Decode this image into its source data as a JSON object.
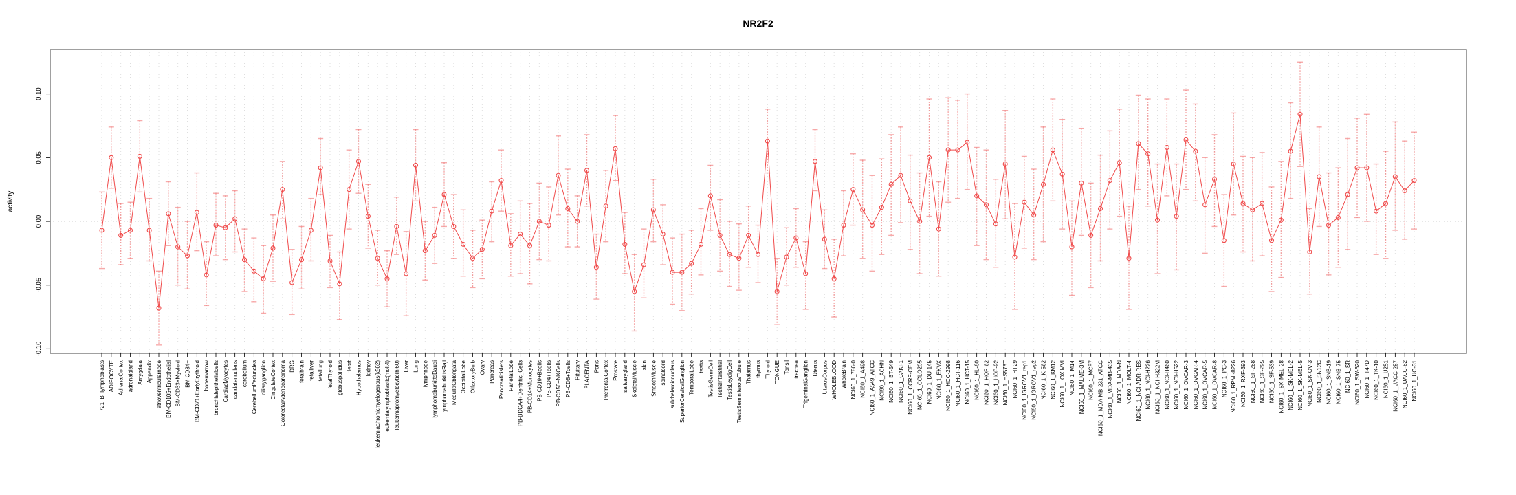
{
  "chart_data": {
    "type": "scatter",
    "title": "NR2F2",
    "ylabel": "activity",
    "xlabel": "",
    "ylim": [
      -0.104,
      0.135
    ],
    "grid": "vertical-dotted-per-category-plus-zero-line",
    "legend": "none",
    "marker": "open-circle-with-error-bars-connected-by-line",
    "ytick_values": [
      -0.1,
      -0.05,
      0.0,
      0.05,
      0.1
    ],
    "ytick_labels": [
      "-0.10",
      "-0.05",
      "0.00",
      "0.05",
      "0.10"
    ],
    "colors": {
      "point": "#f04a4a",
      "line": "#f04a4a",
      "errorbar": "rgba(240,100,100,0.55)",
      "gridline": "#dedede",
      "zero_line": "#d8d8d8",
      "box": "#808080",
      "axis": "#000000"
    },
    "categories": [
      "721_B_lymphoblasts",
      "ADIPOCYTE",
      "AdrenalCortex",
      "adrenalgland",
      "Amygdala",
      "Appendix",
      "atrioventricularnode",
      "BM-CD105+Endothelial",
      "BM-CD33+Myeloid",
      "BM-CD34+",
      "BM-CD71+EarlyErythroid",
      "bonemarrow",
      "bronchialepithelialcells",
      "CardiacMyocytes",
      "caudatenucleus",
      "cerebellum",
      "CerebellumPeduncles",
      "ciliaryganglion",
      "CingulateCortex",
      "ColorectalAdenocarcinoma",
      "DRG",
      "fetalbrain",
      "fetalliver",
      "fetallung",
      "fetalThyroid",
      "globuspallidus",
      "Heart",
      "Hypothalamus",
      "kidney",
      "leukemiachronicmyelogenous(k562)",
      "leukemialymphoblastic(molt4)",
      "leukemiapromyelocytic(hl60)",
      "Liver",
      "Lung",
      "lymphnode",
      "lymphomaburkittsDaudi",
      "lymphomaburkittsRaji",
      "MedullaOblongata",
      "OccipitalLobe",
      "OlfactoryBulb",
      "Ovary",
      "Pancreas",
      "Pancreaticislets",
      "ParietalLobe",
      "PB-BDCA4+Dentritic_Cells",
      "PB-CD14+Monocytes",
      "PB-CD19+Bcells",
      "PB-CD4+Tcells",
      "PB-CD56+NKCells",
      "PB-CD8+Tcells",
      "Pituitary",
      "PLACENTA",
      "Pons",
      "PrefrontalCortex",
      "Prostate",
      "salivarygland",
      "SkeletalMuscle",
      "skin",
      "SmoothMuscle",
      "spinalcord",
      "subthalamicnucleus",
      "SuperiorCervicalGanglion",
      "TemporalLobe",
      "testis",
      "TestisGermCell",
      "TestisInterstitial",
      "TestisLeydigCell",
      "TestisSeminiferousTubule",
      "Thalamus",
      "thymus",
      "Thyroid",
      "TONGUE",
      "Tonsil",
      "trachea",
      "TrigeminalGanglion",
      "Uterus",
      "UterusCorpus",
      "WHOLEBLOOD",
      "WholeBrain",
      "NCI60_1_786-0",
      "NCI60_1_A498",
      "NCI60_1_A549_ATCC",
      "NCI60_1_ACHN",
      "NCI60_1_BT-549",
      "NCI60_1_CAKI-1",
      "NCI60_1_CCRF-CEM",
      "NCI60_1_COLO205",
      "NCI60_1_DU-145",
      "NCI60_1_EKVX",
      "NCI60_1_HCC-2998",
      "NCI60_1_HCT-116",
      "NCI60_1_HCT-15",
      "NCI60_1_HL-60",
      "NCI60_1_HOP-62",
      "NCI60_1_HOP-92",
      "NCI60_1_HS578T",
      "NCI60_1_HT29",
      "NCI60_1_IGROV1_rep1",
      "NCI60_1_IGROV1_rep2",
      "NCI60_1_K-562",
      "NCI60_1_KM12",
      "NCI60_1_LOXIMVI",
      "NCI60_1_M14",
      "NCI60_1_MALME-3M",
      "NCI60_1_MCF7",
      "NCI60_1_MDA-MB-231_ATCC",
      "NCI60_1_MDA-MB-435",
      "NCI60_1_MDA-N",
      "NCI60_1_MOLT-4",
      "NCI60_1_NCI-ADR-RES",
      "NCI60_1_NCI-H226",
      "NCI60_1_NCI-H322M",
      "NCI60_1_NCI-H460",
      "NCI60_1_NCI-H522",
      "NCI60_1_OVCAR-3",
      "NCI60_1_OVCAR-4",
      "NCI60_1_OVCAR-5",
      "NCI60_1_OVCAR-8",
      "NCI60_1_PC-3",
      "NCI60_1_RPMI-8226",
      "NCI60_1_RXF-393",
      "NCI60_1_SF-268",
      "NCI60_1_SF-295",
      "NCI60_1_SF-539",
      "NCI60_1_SK-MEL-28",
      "NCI60_1_SK-MEL-2",
      "NCI60_1_SK-MEL-5",
      "NCI60_1_SK-OV-3",
      "NCI60_1_SN12C",
      "NCI60_1_SNB-19",
      "NCI60_1_SNB-75",
      "NCI60_1_SR",
      "NCI60_1_SW-620",
      "NCI60_1_T47D",
      "NCI60_1_TK-10",
      "NCI60_1_U251",
      "NCI60_1_UACC-257",
      "NCI60_1_UACC-62",
      "NCI60_1_UO-31"
    ],
    "series": [
      {
        "name": "activity",
        "values": [
          -0.007,
          0.05,
          -0.011,
          -0.007,
          0.051,
          -0.007,
          -0.068,
          0.006,
          -0.02,
          -0.027,
          0.007,
          -0.042,
          -0.003,
          -0.005,
          0.002,
          -0.03,
          -0.039,
          -0.045,
          -0.021,
          0.025,
          -0.048,
          -0.03,
          -0.007,
          0.042,
          -0.031,
          -0.049,
          0.025,
          0.047,
          0.004,
          -0.029,
          -0.045,
          -0.004,
          -0.041,
          0.044,
          -0.023,
          -0.011,
          0.021,
          -0.004,
          -0.018,
          -0.029,
          -0.022,
          0.008,
          0.032,
          -0.019,
          -0.01,
          -0.019,
          0.0,
          -0.003,
          0.036,
          0.01,
          0.0,
          0.04,
          -0.036,
          0.012,
          0.057,
          -0.018,
          -0.055,
          -0.034,
          0.009,
          -0.01,
          -0.04,
          -0.04,
          -0.033,
          -0.018,
          0.02,
          -0.011,
          -0.026,
          -0.029,
          -0.011,
          -0.026,
          0.063,
          -0.055,
          -0.028,
          -0.013,
          -0.041,
          0.047,
          -0.014,
          -0.045,
          -0.003,
          0.025,
          0.009,
          -0.003,
          0.011,
          0.029,
          0.036,
          0.016,
          0.0,
          0.05,
          -0.006,
          0.056,
          0.056,
          0.062,
          0.02,
          0.013,
          -0.002,
          0.045,
          -0.028,
          0.015,
          0.005,
          0.029,
          0.056,
          0.037,
          -0.02,
          0.03,
          -0.011,
          0.01,
          0.032,
          0.046,
          -0.029,
          0.061,
          0.053,
          0.001,
          0.058,
          0.004,
          0.064,
          0.055,
          0.013,
          0.033,
          -0.015,
          0.045,
          0.014,
          0.009,
          0.014,
          -0.015,
          0.001,
          0.055,
          0.084,
          -0.024,
          0.035,
          -0.003,
          0.003,
          0.021,
          0.042,
          0.042,
          0.008,
          0.014,
          0.035,
          0.024,
          0.032
        ],
        "lower": [
          -0.037,
          0.026,
          -0.034,
          -0.029,
          0.023,
          -0.031,
          -0.097,
          -0.019,
          -0.05,
          -0.053,
          -0.023,
          -0.066,
          -0.027,
          -0.03,
          -0.024,
          -0.055,
          -0.063,
          -0.072,
          -0.047,
          0.002,
          -0.073,
          -0.053,
          -0.031,
          0.021,
          -0.052,
          -0.077,
          -0.006,
          0.022,
          -0.021,
          -0.05,
          -0.067,
          -0.026,
          -0.074,
          0.016,
          -0.046,
          -0.033,
          -0.004,
          -0.029,
          -0.043,
          -0.052,
          -0.045,
          -0.016,
          0.008,
          -0.043,
          -0.041,
          -0.049,
          -0.03,
          -0.031,
          0.005,
          -0.02,
          -0.02,
          0.012,
          -0.061,
          -0.016,
          0.032,
          -0.041,
          -0.086,
          -0.06,
          -0.016,
          -0.034,
          -0.065,
          -0.07,
          -0.057,
          -0.042,
          -0.007,
          -0.039,
          -0.051,
          -0.054,
          -0.036,
          -0.048,
          0.038,
          -0.081,
          -0.05,
          -0.036,
          -0.069,
          0.024,
          -0.037,
          -0.075,
          -0.027,
          -0.003,
          -0.029,
          -0.039,
          -0.026,
          -0.011,
          -0.001,
          -0.022,
          -0.041,
          0.004,
          -0.043,
          0.015,
          0.018,
          0.025,
          -0.019,
          -0.03,
          -0.036,
          0.002,
          -0.069,
          -0.021,
          -0.03,
          -0.016,
          0.016,
          -0.006,
          -0.058,
          -0.011,
          -0.052,
          -0.031,
          -0.006,
          0.004,
          -0.069,
          0.025,
          0.012,
          -0.041,
          0.02,
          -0.038,
          0.025,
          0.016,
          -0.025,
          -0.004,
          -0.051,
          0.005,
          -0.024,
          -0.031,
          -0.027,
          -0.055,
          -0.044,
          0.018,
          0.043,
          -0.057,
          -0.004,
          -0.042,
          -0.036,
          -0.022,
          0.003,
          0.0,
          -0.026,
          -0.029,
          -0.007,
          -0.014,
          -0.006
        ],
        "upper": [
          0.023,
          0.074,
          0.014,
          0.015,
          0.079,
          0.018,
          -0.039,
          0.031,
          0.011,
          0.0,
          0.038,
          -0.016,
          0.022,
          0.02,
          0.024,
          -0.006,
          -0.013,
          -0.019,
          0.005,
          0.047,
          -0.022,
          -0.004,
          0.018,
          0.065,
          -0.011,
          -0.024,
          0.056,
          0.072,
          0.029,
          -0.007,
          -0.023,
          0.019,
          -0.008,
          0.072,
          0.0,
          0.011,
          0.046,
          0.021,
          0.009,
          -0.007,
          0.001,
          0.031,
          0.056,
          0.006,
          0.016,
          0.014,
          0.03,
          0.027,
          0.067,
          0.041,
          0.02,
          0.068,
          -0.01,
          0.04,
          0.083,
          0.007,
          -0.026,
          -0.006,
          0.033,
          0.013,
          -0.013,
          -0.01,
          -0.007,
          0.01,
          0.044,
          0.017,
          0.0,
          -0.002,
          0.012,
          -0.003,
          0.088,
          -0.029,
          -0.005,
          0.01,
          -0.016,
          0.072,
          0.009,
          -0.014,
          0.024,
          0.053,
          0.048,
          0.036,
          0.049,
          0.068,
          0.074,
          0.052,
          0.038,
          0.096,
          0.031,
          0.097,
          0.095,
          0.1,
          0.058,
          0.056,
          0.033,
          0.087,
          0.014,
          0.051,
          0.041,
          0.074,
          0.096,
          0.08,
          0.016,
          0.073,
          0.03,
          0.052,
          0.071,
          0.088,
          0.012,
          0.099,
          0.096,
          0.045,
          0.096,
          0.045,
          0.103,
          0.092,
          0.05,
          0.068,
          0.021,
          0.085,
          0.051,
          0.05,
          0.054,
          0.027,
          0.047,
          0.093,
          0.125,
          0.01,
          0.074,
          0.038,
          0.042,
          0.065,
          0.081,
          0.084,
          0.045,
          0.055,
          0.078,
          0.063,
          0.07
        ]
      }
    ]
  }
}
